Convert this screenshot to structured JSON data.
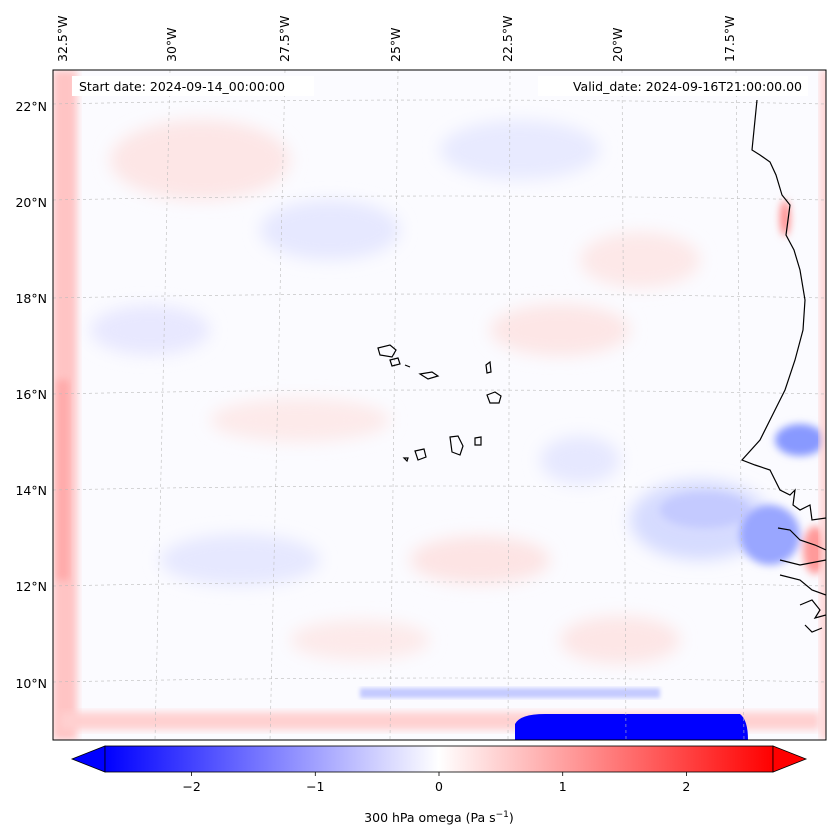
{
  "map": {
    "start_label": "Start date: 2024-09-14_00:00:00",
    "valid_label": "Valid_date: 2024-09-16T21:00:00.00",
    "lon_ticks": [
      "32.5°W",
      "30°W",
      "27.5°W",
      "25°W",
      "22.5°W",
      "20°W",
      "17.5°W"
    ],
    "lat_ticks": [
      "22°N",
      "20°N",
      "18°N",
      "16°N",
      "14°N",
      "12°N",
      "10°N"
    ],
    "coastline_color": "#000000",
    "gridlines": true
  },
  "colorbar": {
    "variable": "300 hPa omega",
    "units_base": "Pa s",
    "units_exp": "−1",
    "range": [
      -2.7,
      2.7
    ],
    "tick_labels": [
      "−2",
      "−1",
      "0",
      "1",
      "2"
    ],
    "tick_values": [
      -2,
      -1,
      0,
      1,
      2
    ],
    "colormap": "bwr",
    "extend": "both",
    "neg_color": "#0000ff",
    "zero_color": "#ffffff",
    "pos_color": "#ff0000"
  }
}
